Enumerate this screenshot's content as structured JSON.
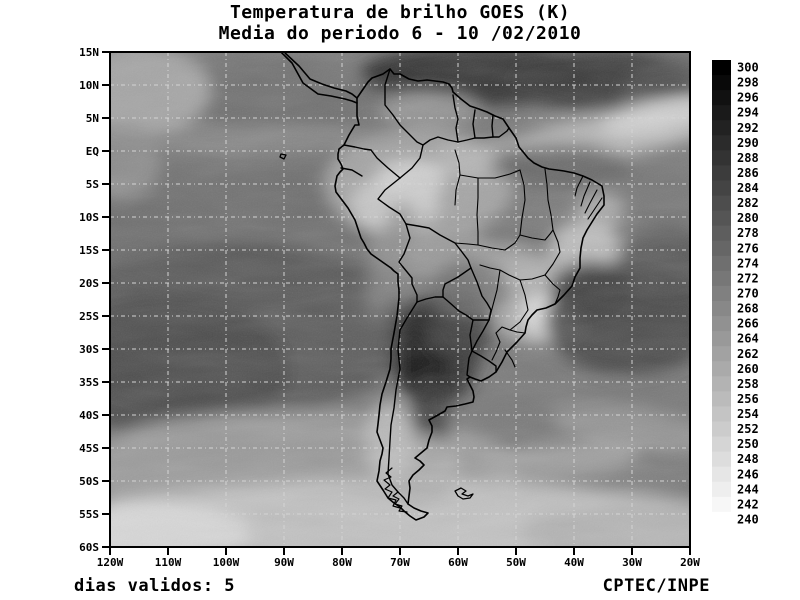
{
  "title": {
    "line1": "Temperatura de brilho GOES (K)",
    "line2": "Media do periodo 6 - 10 /02/2010"
  },
  "axes": {
    "lat_labels": [
      "15N",
      "10N",
      "5N",
      "EQ",
      "5S",
      "10S",
      "15S",
      "20S",
      "25S",
      "30S",
      "35S",
      "40S",
      "45S",
      "50S",
      "55S",
      "60S"
    ],
    "lon_labels": [
      "120W",
      "110W",
      "100W",
      "90W",
      "80W",
      "70W",
      "60W",
      "50W",
      "40W",
      "30W",
      "20W"
    ]
  },
  "colorbar": {
    "unit": "K",
    "labels": [
      "300",
      "298",
      "296",
      "294",
      "292",
      "290",
      "288",
      "286",
      "284",
      "282",
      "280",
      "278",
      "276",
      "274",
      "272",
      "270",
      "268",
      "266",
      "264",
      "262",
      "260",
      "258",
      "256",
      "254",
      "252",
      "250",
      "248",
      "246",
      "244",
      "242",
      "240"
    ],
    "top_color": "#000000",
    "bottom_color": "#ffffff"
  },
  "footer": {
    "left": "dias validos: 5",
    "right": "CPTEC/INPE"
  }
}
